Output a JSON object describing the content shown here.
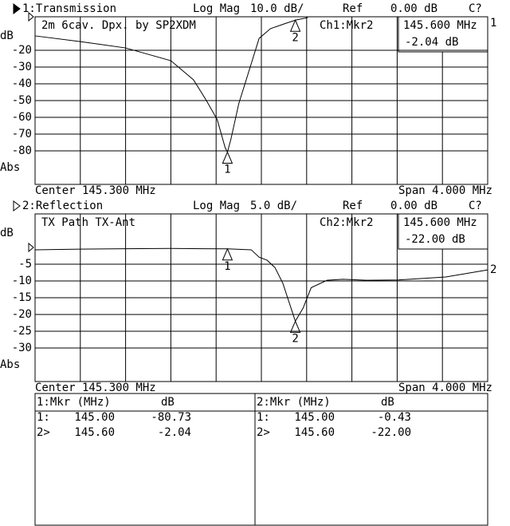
{
  "chart_data": [
    {
      "type": "line",
      "title": "1:Transmission",
      "format": "Log Mag",
      "scale_label": "10.0 dB/",
      "ref_label": "Ref",
      "ref_value": "0.00 dB",
      "status": "C?",
      "annotation": "2m 6cav. Dpx. by SP2XDM",
      "readout_name": "Ch1:Mkr2",
      "readout_freq": "145.600 MHz",
      "readout_value": "-2.04 dB",
      "y_unit": "dB",
      "y_mode": "Abs",
      "center": "Center 145.300 MHz",
      "span": "Span 4.000 MHz",
      "trace_label": "1",
      "xlim": [
        143.3,
        147.3
      ],
      "ylim": [
        -100,
        0
      ],
      "yticks": [
        -20,
        -30,
        -40,
        -50,
        -60,
        -70,
        -80
      ],
      "x": [
        143.3,
        143.7,
        144.1,
        144.5,
        144.7,
        144.81,
        144.91,
        144.98,
        145.0,
        145.03,
        145.1,
        145.21,
        145.28,
        145.38,
        145.5,
        145.6,
        145.71
      ],
      "series": [
        {
          "name": "1:Transmission",
          "color": "#000000",
          "values": [
            -11.4,
            -14.8,
            -18.6,
            -26.2,
            -37.6,
            -49.5,
            -61.4,
            -78.1,
            -80.73,
            -73.3,
            -51.9,
            -28.1,
            -12.9,
            -7.1,
            -4.3,
            -2.04,
            -0.5
          ]
        }
      ],
      "markers": [
        {
          "label": "1",
          "x": 145.0,
          "value": -80.73
        },
        {
          "label": "2",
          "x": 145.6,
          "value": -2.04
        }
      ]
    },
    {
      "type": "line",
      "title": "2:Reflection",
      "format": "Log Mag",
      "scale_label": "5.0 dB/",
      "ref_label": "Ref",
      "ref_value": "0.00 dB",
      "status": "C?",
      "annotation": "TX Path TX-Ant",
      "readout_name": "Ch2:Mkr2",
      "readout_freq": "145.600 MHz",
      "readout_value": "-22.00 dB",
      "y_unit": "dB",
      "y_mode": "Abs",
      "center": "Center 145.300 MHz",
      "span": "Span 4.000 MHz",
      "trace_label": "2",
      "xlim": [
        143.3,
        147.3
      ],
      "ylim": [
        -40,
        10
      ],
      "yticks": [
        -5,
        -10,
        -15,
        -20,
        -25,
        -30
      ],
      "x": [
        143.3,
        143.7,
        144.1,
        144.5,
        145.0,
        145.21,
        145.28,
        145.35,
        145.42,
        145.49,
        145.56,
        145.6,
        145.67,
        145.74,
        145.88,
        146.02,
        146.23,
        146.51,
        146.93,
        147.3
      ],
      "series": [
        {
          "name": "2:Reflection",
          "color": "#000000",
          "values": [
            -0.7,
            -0.5,
            -0.4,
            -0.3,
            -0.43,
            -0.7,
            -2.9,
            -3.8,
            -6.0,
            -10.7,
            -17.9,
            -22.0,
            -18.0,
            -12.0,
            -9.8,
            -9.5,
            -9.8,
            -9.7,
            -8.8,
            -6.7
          ]
        }
      ],
      "markers": [
        {
          "label": "1",
          "x": 145.0,
          "value": -0.43
        },
        {
          "label": "2",
          "x": 145.6,
          "value": -22.0
        }
      ]
    }
  ],
  "marker_tables": [
    {
      "header": [
        "1:Mkr (MHz)",
        "dB"
      ],
      "rows": [
        [
          "1:",
          "145.00",
          "-80.73"
        ],
        [
          "2>",
          "145.60",
          "-2.04"
        ]
      ]
    },
    {
      "header": [
        "2:Mkr (MHz)",
        "dB"
      ],
      "rows": [
        [
          "1:",
          "145.00",
          "-0.43"
        ],
        [
          "2>",
          "145.60",
          "-22.00"
        ]
      ]
    }
  ]
}
